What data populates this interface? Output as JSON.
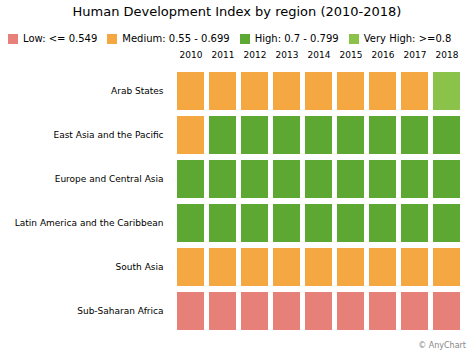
{
  "chart_data": {
    "type": "heatmap",
    "title": "Human Development Index by region (2010-2018)",
    "x": [
      2010,
      2011,
      2012,
      2013,
      2014,
      2015,
      2016,
      2017,
      2018
    ],
    "y": [
      "Arab States",
      "East Asia and the Pacific",
      "Europe and Central Asia",
      "Latin America and the Caribbean",
      "South Asia",
      "Sub-Saharan Africa"
    ],
    "series": [
      {
        "name": "Low: <= 0.549",
        "color": "#E8807A"
      },
      {
        "name": "Medium: 0.55 - 0.699",
        "color": "#F5A742"
      },
      {
        "name": "High: 0.7 - 0.799",
        "color": "#5DA832"
      },
      {
        "name": "Very High: >=0.8",
        "color": "#8BC34A"
      }
    ],
    "cells": [
      [
        "Medium: 0.55 - 0.699",
        "Medium: 0.55 - 0.699",
        "Medium: 0.55 - 0.699",
        "Medium: 0.55 - 0.699",
        "Medium: 0.55 - 0.699",
        "Medium: 0.55 - 0.699",
        "Medium: 0.55 - 0.699",
        "Medium: 0.55 - 0.699",
        "Very High: >=0.8"
      ],
      [
        "Medium: 0.55 - 0.699",
        "High: 0.7 - 0.799",
        "High: 0.7 - 0.799",
        "High: 0.7 - 0.799",
        "High: 0.7 - 0.799",
        "High: 0.7 - 0.799",
        "High: 0.7 - 0.799",
        "High: 0.7 - 0.799",
        "High: 0.7 - 0.799"
      ],
      [
        "High: 0.7 - 0.799",
        "High: 0.7 - 0.799",
        "High: 0.7 - 0.799",
        "High: 0.7 - 0.799",
        "High: 0.7 - 0.799",
        "High: 0.7 - 0.799",
        "High: 0.7 - 0.799",
        "High: 0.7 - 0.799",
        "High: 0.7 - 0.799"
      ],
      [
        "High: 0.7 - 0.799",
        "High: 0.7 - 0.799",
        "High: 0.7 - 0.799",
        "High: 0.7 - 0.799",
        "High: 0.7 - 0.799",
        "High: 0.7 - 0.799",
        "High: 0.7 - 0.799",
        "High: 0.7 - 0.799",
        "High: 0.7 - 0.799"
      ],
      [
        "Medium: 0.55 - 0.699",
        "Medium: 0.55 - 0.699",
        "Medium: 0.55 - 0.699",
        "Medium: 0.55 - 0.699",
        "Medium: 0.55 - 0.699",
        "Medium: 0.55 - 0.699",
        "Medium: 0.55 - 0.699",
        "Medium: 0.55 - 0.699",
        "Medium: 0.55 - 0.699"
      ],
      [
        "Low: <= 0.549",
        "Low: <= 0.549",
        "Low: <= 0.549",
        "Low: <= 0.549",
        "Low: <= 0.549",
        "Low: <= 0.549",
        "Low: <= 0.549",
        "Low: <= 0.549",
        "Low: <= 0.549"
      ]
    ],
    "annotations": [
      "© AnyChart"
    ],
    "legend": "top",
    "grid": false
  }
}
